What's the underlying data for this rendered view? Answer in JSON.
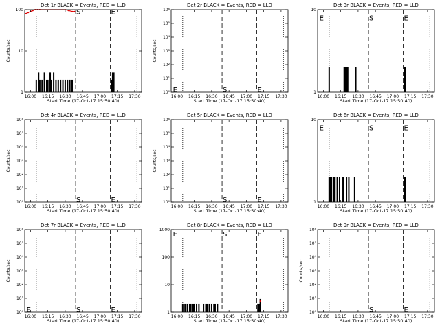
{
  "chart_data": [
    {
      "type": "bar",
      "title": "Det 1r BLACK = Events, RED = LLD",
      "xlabel": "Start Time (17-Oct-17 15:50:40)",
      "ylabel": "Counts/sec",
      "scale": "log",
      "ylim": [
        1,
        100
      ],
      "y_ticks": [
        {
          "v": 1,
          "label": "1"
        },
        {
          "v": 10,
          "label": "10"
        },
        {
          "v": 100,
          "label": "100"
        }
      ],
      "xlim_min": [
        5,
        106
      ],
      "x_ticks": [
        {
          "v": 10,
          "label": "16:00"
        },
        {
          "v": 25,
          "label": "16:15"
        },
        {
          "v": 40,
          "label": "16:30"
        },
        {
          "v": 55,
          "label": "16:45"
        },
        {
          "v": 70,
          "label": "17:00"
        },
        {
          "v": 85,
          "label": "17:15"
        },
        {
          "v": 100,
          "label": "17:30"
        }
      ],
      "dotted_lines": [
        15,
        102
      ],
      "markers": [
        {
          "label": "S",
          "x": 49,
          "y": 90
        },
        {
          "label": "E",
          "x": 79,
          "y": 90
        }
      ],
      "red_points": [
        [
          6,
          80
        ],
        [
          8,
          85
        ],
        [
          10,
          90
        ],
        [
          12,
          95
        ],
        [
          14,
          100
        ],
        [
          16,
          100
        ],
        [
          18,
          100
        ],
        [
          40,
          100
        ],
        [
          43,
          95
        ],
        [
          46,
          90
        ],
        [
          48,
          90
        ]
      ],
      "bars": [
        [
          15,
          2
        ],
        [
          17,
          3
        ],
        [
          18,
          2
        ],
        [
          20,
          2
        ],
        [
          22,
          3
        ],
        [
          24,
          2
        ],
        [
          25,
          2
        ],
        [
          27,
          3
        ],
        [
          28,
          2
        ],
        [
          30,
          3
        ],
        [
          32,
          2
        ],
        [
          34,
          2
        ],
        [
          36,
          2
        ],
        [
          38,
          2
        ],
        [
          40,
          2
        ],
        [
          42,
          2
        ],
        [
          44,
          2
        ],
        [
          46,
          2
        ],
        [
          80,
          2
        ],
        [
          81,
          3
        ],
        [
          82,
          3
        ]
      ]
    },
    {
      "type": "bar",
      "title": "Det 2r BLACK = Events, RED = LLD",
      "xlabel": "Start Time (17-Oct-17 15:50:40)",
      "ylabel": "Counts/sec",
      "scale": "log",
      "ylim": [
        1,
        1000000
      ],
      "y_ticks": [
        {
          "v": 1,
          "label": "10⁰"
        },
        {
          "v": 10,
          "label": "10¹"
        },
        {
          "v": 100,
          "label": "10²"
        },
        {
          "v": 1000,
          "label": "10³"
        },
        {
          "v": 10000,
          "label": "10⁴"
        },
        {
          "v": 100000,
          "label": "10⁵"
        },
        {
          "v": 1000000,
          "label": "10⁶"
        }
      ],
      "xlim_min": [
        5,
        106
      ],
      "x_ticks": [
        {
          "v": 10,
          "label": "16:00"
        },
        {
          "v": 25,
          "label": "16:15"
        },
        {
          "v": 40,
          "label": "16:30"
        },
        {
          "v": 55,
          "label": "16:45"
        },
        {
          "v": 70,
          "label": "17:00"
        },
        {
          "v": 85,
          "label": "17:15"
        },
        {
          "v": 100,
          "label": "17:30"
        }
      ],
      "dotted_lines": [
        15,
        102
      ],
      "markers": [
        {
          "label": "E",
          "x": 6,
          "y": 1.6
        },
        {
          "label": "S",
          "x": 49,
          "y": 1.6
        },
        {
          "label": "E",
          "x": 79,
          "y": 1.6
        }
      ],
      "red_points": [],
      "bars": []
    },
    {
      "type": "bar",
      "title": "Det 3r BLACK = Events, RED = LLD",
      "xlabel": "Start Time (17-Oct-17 15:50:40)",
      "ylabel": "",
      "scale": "log",
      "ylim": [
        1,
        10
      ],
      "y_ticks": [
        {
          "v": 1,
          "label": "1"
        },
        {
          "v": 10,
          "label": "10"
        }
      ],
      "xlim_min": [
        5,
        106
      ],
      "x_ticks": [
        {
          "v": 10,
          "label": "16:00"
        },
        {
          "v": 25,
          "label": "16:15"
        },
        {
          "v": 40,
          "label": "16:30"
        },
        {
          "v": 55,
          "label": "16:45"
        },
        {
          "v": 70,
          "label": "17:00"
        },
        {
          "v": 85,
          "label": "17:15"
        },
        {
          "v": 100,
          "label": "17:30"
        }
      ],
      "dotted_lines": [
        15,
        102
      ],
      "markers": [
        {
          "label": "E",
          "x": 6,
          "y": 8
        },
        {
          "label": "S",
          "x": 49,
          "y": 8
        },
        {
          "label": "E",
          "x": 79,
          "y": 8
        }
      ],
      "red_points": [],
      "bars": [
        [
          15,
          2
        ],
        [
          28,
          2
        ],
        [
          29,
          2
        ],
        [
          30,
          2
        ],
        [
          31,
          2
        ],
        [
          38,
          2
        ],
        [
          80,
          2
        ],
        [
          81,
          2
        ]
      ]
    },
    {
      "type": "bar",
      "title": "Det 4r BLACK = Events, RED = LLD",
      "xlabel": "Start Time (17-Oct-17 15:50:40)",
      "ylabel": "Counts/sec",
      "scale": "log",
      "ylim": [
        1,
        1000000
      ],
      "y_ticks": [
        {
          "v": 1,
          "label": "10⁰"
        },
        {
          "v": 10,
          "label": "10¹"
        },
        {
          "v": 100,
          "label": "10²"
        },
        {
          "v": 1000,
          "label": "10³"
        },
        {
          "v": 10000,
          "label": "10⁴"
        },
        {
          "v": 100000,
          "label": "10⁵"
        },
        {
          "v": 1000000,
          "label": "10⁶"
        }
      ],
      "xlim_min": [
        5,
        106
      ],
      "x_ticks": [
        {
          "v": 10,
          "label": "16:00"
        },
        {
          "v": 25,
          "label": "16:15"
        },
        {
          "v": 40,
          "label": "16:30"
        },
        {
          "v": 55,
          "label": "16:45"
        },
        {
          "v": 70,
          "label": "17:00"
        },
        {
          "v": 85,
          "label": "17:15"
        },
        {
          "v": 100,
          "label": "17:30"
        }
      ],
      "dotted_lines": [
        15,
        102
      ],
      "markers": [
        {
          "label": "S",
          "x": 49,
          "y": 1.6
        },
        {
          "label": "E",
          "x": 79,
          "y": 1.6
        }
      ],
      "red_points": [],
      "bars": []
    },
    {
      "type": "bar",
      "title": "Det 5r BLACK = Events, RED = LLD",
      "xlabel": "Start Time (17-Oct-17 15:50:40)",
      "ylabel": "Counts/sec",
      "scale": "log",
      "ylim": [
        1,
        1000000
      ],
      "y_ticks": [
        {
          "v": 1,
          "label": "10⁰"
        },
        {
          "v": 10,
          "label": "10¹"
        },
        {
          "v": 100,
          "label": "10²"
        },
        {
          "v": 1000,
          "label": "10³"
        },
        {
          "v": 10000,
          "label": "10⁴"
        },
        {
          "v": 100000,
          "label": "10⁵"
        },
        {
          "v": 1000000,
          "label": "10⁶"
        }
      ],
      "xlim_min": [
        5,
        106
      ],
      "x_ticks": [
        {
          "v": 10,
          "label": "16:00"
        },
        {
          "v": 25,
          "label": "16:15"
        },
        {
          "v": 40,
          "label": "16:30"
        },
        {
          "v": 55,
          "label": "16:45"
        },
        {
          "v": 70,
          "label": "17:00"
        },
        {
          "v": 85,
          "label": "17:15"
        },
        {
          "v": 100,
          "label": "17:30"
        }
      ],
      "dotted_lines": [
        15,
        102
      ],
      "markers": [
        {
          "label": "S",
          "x": 49,
          "y": 1.6
        },
        {
          "label": "E",
          "x": 79,
          "y": 1.6
        }
      ],
      "red_points": [],
      "bars": []
    },
    {
      "type": "bar",
      "title": "Det 6r BLACK = Events, RED = LLD",
      "xlabel": "Start Time (17-Oct-17 15:50:40)",
      "ylabel": "",
      "scale": "log",
      "ylim": [
        1,
        10
      ],
      "y_ticks": [
        {
          "v": 1,
          "label": "1"
        },
        {
          "v": 10,
          "label": "10"
        }
      ],
      "xlim_min": [
        5,
        106
      ],
      "x_ticks": [
        {
          "v": 10,
          "label": "16:00"
        },
        {
          "v": 25,
          "label": "16:15"
        },
        {
          "v": 40,
          "label": "16:30"
        },
        {
          "v": 55,
          "label": "16:45"
        },
        {
          "v": 70,
          "label": "17:00"
        },
        {
          "v": 85,
          "label": "17:15"
        },
        {
          "v": 100,
          "label": "17:30"
        }
      ],
      "dotted_lines": [
        15,
        102
      ],
      "markers": [
        {
          "label": "E",
          "x": 6,
          "y": 8
        },
        {
          "label": "S",
          "x": 49,
          "y": 8
        },
        {
          "label": "E",
          "x": 79,
          "y": 8
        }
      ],
      "red_points": [],
      "bars": [
        [
          15,
          2
        ],
        [
          16,
          2
        ],
        [
          17,
          2
        ],
        [
          19,
          2
        ],
        [
          20,
          2
        ],
        [
          22,
          2
        ],
        [
          24,
          2
        ],
        [
          27,
          2
        ],
        [
          30,
          2
        ],
        [
          32,
          2
        ],
        [
          37,
          2
        ],
        [
          80,
          2
        ],
        [
          81,
          2
        ]
      ]
    },
    {
      "type": "bar",
      "title": "Det 7r BLACK = Events, RED = LLD",
      "xlabel": "Start Time (17-Oct-17 15:50:40)",
      "ylabel": "Counts/sec",
      "scale": "log",
      "ylim": [
        1,
        1000000
      ],
      "y_ticks": [
        {
          "v": 1,
          "label": "10⁰"
        },
        {
          "v": 10,
          "label": "10¹"
        },
        {
          "v": 100,
          "label": "10²"
        },
        {
          "v": 1000,
          "label": "10³"
        },
        {
          "v": 10000,
          "label": "10⁴"
        },
        {
          "v": 100000,
          "label": "10⁵"
        },
        {
          "v": 1000000,
          "label": "10⁶"
        }
      ],
      "xlim_min": [
        5,
        106
      ],
      "x_ticks": [
        {
          "v": 10,
          "label": "16:00"
        },
        {
          "v": 25,
          "label": "16:15"
        },
        {
          "v": 40,
          "label": "16:30"
        },
        {
          "v": 55,
          "label": "16:45"
        },
        {
          "v": 70,
          "label": "17:00"
        },
        {
          "v": 85,
          "label": "17:15"
        },
        {
          "v": 100,
          "label": "17:30"
        }
      ],
      "dotted_lines": [
        15,
        102
      ],
      "markers": [
        {
          "label": "E",
          "x": 6,
          "y": 1.6
        },
        {
          "label": "S",
          "x": 49,
          "y": 1.6
        },
        {
          "label": "E",
          "x": 79,
          "y": 1.6
        }
      ],
      "red_points": [],
      "bars": []
    },
    {
      "type": "bar",
      "title": "Det 8r BLACK = Events, RED = LLD",
      "xlabel": "Start Time (17-Oct-17 15:50:40)",
      "ylabel": "",
      "scale": "log",
      "ylim": [
        1,
        1000
      ],
      "y_ticks": [
        {
          "v": 1,
          "label": "1"
        },
        {
          "v": 10,
          "label": "10"
        },
        {
          "v": 100,
          "label": "100"
        },
        {
          "v": 1000,
          "label": "1000"
        }
      ],
      "xlim_min": [
        5,
        106
      ],
      "x_ticks": [
        {
          "v": 10,
          "label": "16:00"
        },
        {
          "v": 25,
          "label": "16:15"
        },
        {
          "v": 40,
          "label": "16:30"
        },
        {
          "v": 55,
          "label": "16:45"
        },
        {
          "v": 70,
          "label": "17:00"
        },
        {
          "v": 85,
          "label": "17:15"
        },
        {
          "v": 100,
          "label": "17:30"
        }
      ],
      "dotted_lines": [
        15,
        102
      ],
      "markers": [
        {
          "label": "E",
          "x": 6,
          "y": 700
        },
        {
          "label": "S",
          "x": 49,
          "y": 700
        },
        {
          "label": "E",
          "x": 79,
          "y": 700
        }
      ],
      "red_points": [
        [
          82,
          2.5
        ]
      ],
      "bars": [
        [
          15,
          2
        ],
        [
          17,
          2
        ],
        [
          19,
          2
        ],
        [
          21,
          2
        ],
        [
          22,
          2
        ],
        [
          24,
          2
        ],
        [
          25,
          2
        ],
        [
          27,
          2
        ],
        [
          29,
          2
        ],
        [
          33,
          2
        ],
        [
          35,
          2
        ],
        [
          36,
          2
        ],
        [
          38,
          2
        ],
        [
          40,
          2
        ],
        [
          42,
          2
        ],
        [
          43,
          2
        ],
        [
          45,
          2
        ],
        [
          80,
          2
        ],
        [
          81,
          2
        ],
        [
          82,
          3
        ]
      ]
    },
    {
      "type": "bar",
      "title": "Det 9r BLACK = Events, RED = LLD",
      "xlabel": "Start Time (17-Oct-17 15:50:40)",
      "ylabel": "Counts/sec",
      "scale": "log",
      "ylim": [
        1,
        1000000
      ],
      "y_ticks": [
        {
          "v": 1,
          "label": "10⁰"
        },
        {
          "v": 10,
          "label": "10¹"
        },
        {
          "v": 100,
          "label": "10²"
        },
        {
          "v": 1000,
          "label": "10³"
        },
        {
          "v": 10000,
          "label": "10⁴"
        },
        {
          "v": 100000,
          "label": "10⁵"
        },
        {
          "v": 1000000,
          "label": "10⁶"
        }
      ],
      "xlim_min": [
        5,
        106
      ],
      "x_ticks": [
        {
          "v": 10,
          "label": "16:00"
        },
        {
          "v": 25,
          "label": "16:15"
        },
        {
          "v": 40,
          "label": "16:30"
        },
        {
          "v": 55,
          "label": "16:45"
        },
        {
          "v": 70,
          "label": "17:00"
        },
        {
          "v": 85,
          "label": "17:15"
        },
        {
          "v": 100,
          "label": "17:30"
        }
      ],
      "dotted_lines": [
        15,
        102
      ],
      "markers": [
        {
          "label": "S",
          "x": 49,
          "y": 1.6
        },
        {
          "label": "E",
          "x": 79,
          "y": 1.6
        }
      ],
      "red_points": [],
      "bars": []
    }
  ]
}
